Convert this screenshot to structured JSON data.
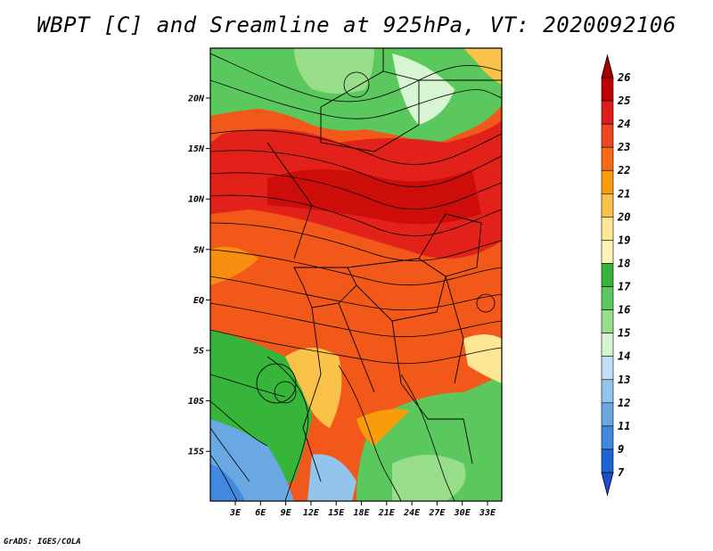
{
  "title": "WBPT [C] and Sreamline at 925hPa, VT: 2020092106",
  "footer": "GrADS: IGES/COLA",
  "map": {
    "lat_labels": [
      "20N",
      "15N",
      "10N",
      "5N",
      "EQ",
      "5S",
      "10S",
      "15S"
    ],
    "lon_labels": [
      "3E",
      "6E",
      "9E",
      "12E",
      "15E",
      "18E",
      "21E",
      "24E",
      "27E",
      "30E",
      "33E"
    ]
  },
  "colorbar": {
    "labels": [
      "26",
      "25",
      "24",
      "23",
      "22",
      "21",
      "20",
      "19",
      "18",
      "17",
      "16",
      "15",
      "14",
      "13",
      "12",
      "11",
      "9",
      "7"
    ],
    "colors": [
      "#c00000",
      "#e01c1c",
      "#f0461e",
      "#f76b12",
      "#f99c0c",
      "#fbc249",
      "#fde694",
      "#fdf5b6",
      "#37b43a",
      "#5ac85c",
      "#98de8a",
      "#d7f5d2",
      "#c1e0f8",
      "#93c4ec",
      "#6aa8e4",
      "#4089df",
      "#1e64d6"
    ],
    "top_arrow_color": "#a00000",
    "bottom_arrow_color": "#1650d0"
  }
}
